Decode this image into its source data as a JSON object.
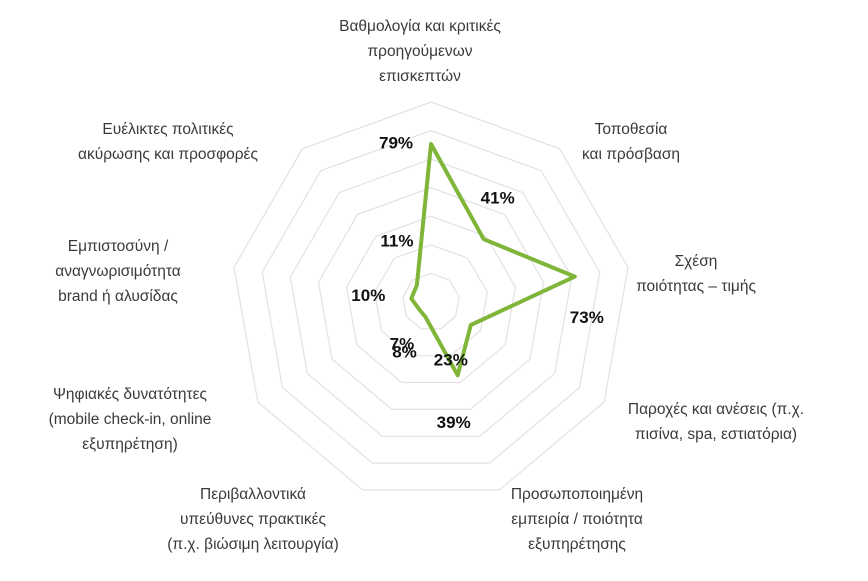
{
  "chart_data": {
    "type": "radar",
    "categories": [
      "Βαθμολογία και κριτικές προηγούμενων επισκεπτών",
      "Τοποθεσία και πρόσβαση",
      "Σχέση ποιότητας – τιμής",
      "Παροχές και ανέσεις (π.χ. πισίνα, spa, εστιατόρια)",
      "Προσωποποιημένη εμπειρία / ποιότητα εξυπηρέτησης",
      "Περιβαλλοντικά υπεύθυνες πρακτικές (π.χ. βιώσιμη λειτουργία)",
      "Ψηφιακές δυνατότητες (mobile check-in, online εξυπηρέτηση)",
      "Εμπιστοσύνη / αναγνωρισιμότητα brand ή αλυσίδας",
      "Ευέλικτες πολιτικές ακύρωσης και προσφορές"
    ],
    "category_lines": [
      [
        "Βαθμολογία και κριτικές",
        "προηγούμενων",
        "επισκεπτών"
      ],
      [
        "Τοποθεσία",
        "και πρόσβαση"
      ],
      [
        "Σχέση",
        "ποιότητας – τιμής"
      ],
      [
        "Παροχές και ανέσεις (π.χ.",
        "πισίνα, spa, εστιατόρια)"
      ],
      [
        "Προσωποποιημένη",
        "εμπειρία / ποιότητα",
        "εξυπηρέτησης"
      ],
      [
        "Περιβαλλοντικά",
        "υπεύθυνες πρακτικές",
        "(π.χ. βιώσιμη λειτουργία)"
      ],
      [
        "Ψηφιακές δυνατότητες",
        "(mobile check-in, online",
        "εξυπηρέτηση)"
      ],
      [
        "Εμπιστοσύνη /",
        "αναγνωρισιμότητα",
        "brand ή αλυσίδας"
      ],
      [
        "Ευέλικτες πολιτικές",
        "ακύρωσης και προσφορές"
      ]
    ],
    "values": [
      79,
      41,
      73,
      23,
      39,
      8,
      7,
      10,
      11
    ],
    "value_labels": [
      "79%",
      "41%",
      "73%",
      "23%",
      "39%",
      "8%",
      "7%",
      "10%",
      "11%"
    ],
    "rlim": [
      0,
      100
    ],
    "grid": true,
    "legend": "none",
    "colors": {
      "series": "#7fb539",
      "grid": "#e2e2e2",
      "text": "#3a3a3a",
      "value": "#111111"
    }
  }
}
